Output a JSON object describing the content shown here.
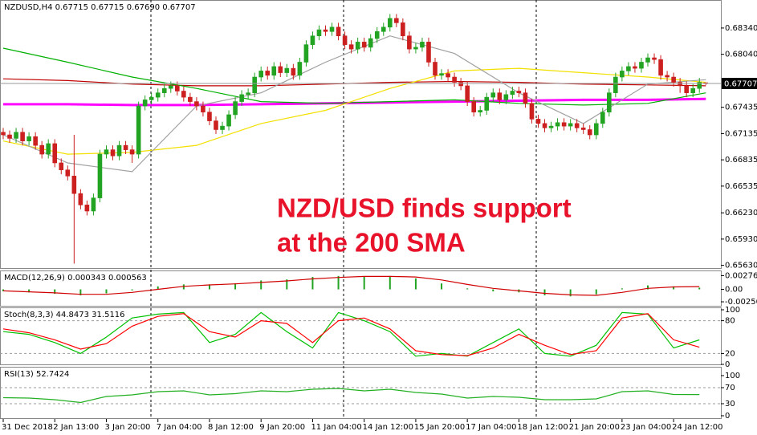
{
  "chart_data": [
    {
      "type": "candlestick",
      "title": "NZDUSD,H4 0.67715 0.67715 0.67690 0.67707",
      "ylim": [
        0.6559,
        0.6866
      ],
      "yticks": [
        {
          "value": 0.6834,
          "label": "0.68340"
        },
        {
          "value": 0.6804,
          "label": "0.68040"
        },
        {
          "value": 0.67435,
          "label": "0.67435"
        },
        {
          "value": 0.67135,
          "label": "0.67135"
        },
        {
          "value": 0.66835,
          "label": "0.66835"
        },
        {
          "value": 0.66535,
          "label": "0.66535"
        },
        {
          "value": 0.6623,
          "label": "0.66230"
        },
        {
          "value": 0.6593,
          "label": "0.65930"
        },
        {
          "value": 0.6563,
          "label": "0.65630"
        }
      ],
      "up_color": "#22a322",
      "down_color": "#cc1f1f",
      "open": [
        0.6715,
        0.6712,
        0.6708,
        0.6715,
        0.6705,
        0.671,
        0.67,
        0.669,
        0.6702,
        0.668,
        0.6672,
        0.6665,
        0.6645,
        0.6632,
        0.6625,
        0.664,
        0.669,
        0.6695,
        0.6688,
        0.67,
        0.6695,
        0.669,
        0.6745,
        0.6752,
        0.6755,
        0.676,
        0.6765,
        0.6768,
        0.6762,
        0.6755,
        0.675,
        0.6745,
        0.6738,
        0.6728,
        0.6718,
        0.6722,
        0.6735,
        0.675,
        0.6758,
        0.676,
        0.6778,
        0.6785,
        0.678,
        0.679,
        0.6783,
        0.6788,
        0.678,
        0.6795,
        0.6815,
        0.6825,
        0.6832,
        0.683,
        0.6835,
        0.6825,
        0.6815,
        0.681,
        0.6818,
        0.6812,
        0.6822,
        0.683,
        0.6835,
        0.6845,
        0.684,
        0.6825,
        0.681,
        0.6812,
        0.6818,
        0.6795,
        0.678,
        0.6782,
        0.6778,
        0.6772,
        0.6768,
        0.675,
        0.6738,
        0.674,
        0.6755,
        0.676,
        0.6752,
        0.6758,
        0.6762,
        0.676,
        0.6748,
        0.673,
        0.6725,
        0.672,
        0.6722,
        0.6726,
        0.6722,
        0.6725,
        0.672,
        0.6718,
        0.6712,
        0.6725,
        0.6738,
        0.676,
        0.6778,
        0.6785,
        0.679,
        0.6788,
        0.6795,
        0.68,
        0.6798,
        0.678,
        0.6778,
        0.6772,
        0.6768,
        0.676,
        0.6765,
        0.67715
      ],
      "high": [
        0.672,
        0.6717,
        0.672,
        0.672,
        0.6715,
        0.6715,
        0.6705,
        0.6707,
        0.6707,
        0.6685,
        0.6677,
        0.6712,
        0.665,
        0.6637,
        0.6645,
        0.6695,
        0.67,
        0.67,
        0.6705,
        0.6705,
        0.67,
        0.675,
        0.6757,
        0.676,
        0.6765,
        0.677,
        0.6773,
        0.6773,
        0.6767,
        0.676,
        0.6755,
        0.675,
        0.6743,
        0.6733,
        0.6727,
        0.674,
        0.6755,
        0.6763,
        0.6765,
        0.6783,
        0.679,
        0.679,
        0.6795,
        0.6795,
        0.6793,
        0.6793,
        0.68,
        0.682,
        0.683,
        0.6837,
        0.6837,
        0.684,
        0.684,
        0.683,
        0.682,
        0.6823,
        0.6823,
        0.6827,
        0.6835,
        0.684,
        0.685,
        0.685,
        0.6845,
        0.683,
        0.6817,
        0.6823,
        0.6823,
        0.68,
        0.6787,
        0.6787,
        0.6783,
        0.6777,
        0.6773,
        0.6755,
        0.6745,
        0.676,
        0.6765,
        0.6765,
        0.6763,
        0.6767,
        0.6767,
        0.6765,
        0.6753,
        0.6735,
        0.673,
        0.6727,
        0.6731,
        0.6731,
        0.673,
        0.673,
        0.6725,
        0.6723,
        0.673,
        0.6743,
        0.6765,
        0.6783,
        0.679,
        0.6795,
        0.6795,
        0.68,
        0.6805,
        0.6805,
        0.6803,
        0.6785,
        0.6783,
        0.6777,
        0.6773,
        0.677,
        0.6777,
        0.67715
      ],
      "low": [
        0.6707,
        0.6703,
        0.6703,
        0.67,
        0.67,
        0.6695,
        0.6685,
        0.6685,
        0.6675,
        0.6667,
        0.666,
        0.6565,
        0.6627,
        0.662,
        0.662,
        0.6635,
        0.6685,
        0.6683,
        0.6683,
        0.669,
        0.668,
        0.6685,
        0.674,
        0.6747,
        0.675,
        0.6755,
        0.676,
        0.6757,
        0.675,
        0.6745,
        0.674,
        0.6733,
        0.6723,
        0.6713,
        0.6713,
        0.6717,
        0.673,
        0.6745,
        0.6753,
        0.6755,
        0.6773,
        0.6775,
        0.6775,
        0.6778,
        0.6778,
        0.6775,
        0.6775,
        0.679,
        0.681,
        0.682,
        0.6825,
        0.6825,
        0.682,
        0.681,
        0.6805,
        0.6805,
        0.6807,
        0.6807,
        0.6817,
        0.6825,
        0.683,
        0.6835,
        0.682,
        0.6805,
        0.6805,
        0.6807,
        0.679,
        0.6775,
        0.6775,
        0.6773,
        0.6767,
        0.6763,
        0.6745,
        0.6733,
        0.6733,
        0.6735,
        0.675,
        0.6747,
        0.6747,
        0.6753,
        0.6755,
        0.6743,
        0.6725,
        0.672,
        0.6715,
        0.6715,
        0.6717,
        0.6717,
        0.6717,
        0.6715,
        0.6713,
        0.6707,
        0.6707,
        0.672,
        0.6733,
        0.6755,
        0.6773,
        0.678,
        0.6783,
        0.6783,
        0.679,
        0.6793,
        0.6775,
        0.6773,
        0.6767,
        0.676,
        0.6755,
        0.6755,
        0.676,
        0.6769
      ],
      "close": [
        0.6712,
        0.6708,
        0.6715,
        0.6705,
        0.671,
        0.67,
        0.669,
        0.6702,
        0.668,
        0.6672,
        0.6665,
        0.6645,
        0.6632,
        0.6625,
        0.664,
        0.669,
        0.6695,
        0.6688,
        0.67,
        0.6695,
        0.669,
        0.6745,
        0.6752,
        0.6755,
        0.676,
        0.6765,
        0.6768,
        0.6762,
        0.6755,
        0.675,
        0.6745,
        0.6738,
        0.6728,
        0.6718,
        0.6722,
        0.6735,
        0.675,
        0.6758,
        0.676,
        0.6778,
        0.6785,
        0.678,
        0.679,
        0.6783,
        0.6788,
        0.678,
        0.6795,
        0.6815,
        0.6825,
        0.6832,
        0.683,
        0.6835,
        0.6825,
        0.6815,
        0.681,
        0.6818,
        0.6812,
        0.6822,
        0.683,
        0.6835,
        0.6845,
        0.684,
        0.6825,
        0.681,
        0.6812,
        0.6818,
        0.6795,
        0.678,
        0.6782,
        0.6778,
        0.6772,
        0.6768,
        0.675,
        0.6738,
        0.674,
        0.6755,
        0.676,
        0.6752,
        0.6758,
        0.6762,
        0.676,
        0.6748,
        0.673,
        0.6725,
        0.672,
        0.6722,
        0.6726,
        0.6722,
        0.6725,
        0.672,
        0.6718,
        0.6712,
        0.6725,
        0.6738,
        0.676,
        0.6778,
        0.6785,
        0.679,
        0.6788,
        0.6795,
        0.68,
        0.6798,
        0.678,
        0.6778,
        0.6772,
        0.6768,
        0.676,
        0.6765,
        0.6772,
        0.67707
      ],
      "lines": [
        {
          "color": "#ff00ff",
          "x": [
            0,
            10,
            20,
            30,
            40,
            50,
            60,
            70,
            80,
            90,
            100,
            109
          ],
          "values": [
            0.6747,
            0.6747,
            0.6746,
            0.6746,
            0.6747,
            0.6748,
            0.6749,
            0.675,
            0.6751,
            0.6752,
            0.6752,
            0.6753
          ]
        },
        {
          "color": "#c00000",
          "x": [
            0,
            10,
            20,
            30,
            40,
            50,
            60,
            70,
            80,
            90,
            100,
            109
          ],
          "values": [
            0.6776,
            0.6774,
            0.677,
            0.6768,
            0.6768,
            0.677,
            0.6772,
            0.6773,
            0.6772,
            0.677,
            0.6769,
            0.6768
          ]
        },
        {
          "color": "#00b000",
          "x": [
            0,
            10,
            20,
            30,
            40,
            50,
            60,
            70,
            80,
            90,
            100,
            109
          ],
          "values": [
            0.6811,
            0.6795,
            0.6778,
            0.6765,
            0.675,
            0.6748,
            0.675,
            0.6752,
            0.6748,
            0.6746,
            0.6748,
            0.676
          ]
        },
        {
          "color": "#f2e000",
          "x": [
            0,
            10,
            20,
            30,
            40,
            50,
            60,
            70,
            80,
            90,
            100,
            109
          ],
          "values": [
            0.6705,
            0.669,
            0.6692,
            0.67,
            0.6725,
            0.674,
            0.6765,
            0.6785,
            0.6788,
            0.6783,
            0.6778,
            0.6772
          ]
        },
        {
          "color": "#a0a0a0",
          "x": [
            0,
            10,
            20,
            30,
            40,
            50,
            60,
            70,
            80,
            90,
            100,
            109
          ],
          "values": [
            0.6712,
            0.668,
            0.667,
            0.6745,
            0.676,
            0.6795,
            0.6825,
            0.6805,
            0.676,
            0.6725,
            0.677,
            0.6775
          ]
        }
      ],
      "last_price": 0.67707,
      "annotations": [
        "NZD/USD finds support",
        "at the 200 SMA"
      ]
    },
    {
      "type": "bar",
      "title": "MACD(12,26,9) 0.000343 0.000563",
      "ylim": [
        -0.0033,
        0.0038
      ],
      "yticks": [
        0.002761,
        {
          "value": 0,
          "label": "0.00"
        },
        -0.002501
      ],
      "grid": false,
      "x": [
        0,
        4,
        8,
        12,
        16,
        20,
        24,
        28,
        32,
        36,
        40,
        44,
        48,
        52,
        56,
        60,
        64,
        68,
        72,
        76,
        80,
        84,
        88,
        92,
        96,
        100,
        104,
        108
      ],
      "color": "#22a322",
      "values": [
        -0.0004,
        -0.0006,
        -0.0009,
        -0.0012,
        -0.0008,
        -0.0002,
        0.0006,
        0.001,
        0.001,
        0.0012,
        0.0018,
        0.002,
        0.0025,
        0.0027,
        0.0026,
        0.0027,
        0.0022,
        0.0012,
        0.0002,
        -0.0004,
        -0.0006,
        -0.0012,
        -0.0014,
        -0.001,
        0.0002,
        0.0008,
        0.0006,
        0.000343
      ],
      "lines": [
        {
          "color": "#d00000",
          "values": [
            -0.0003,
            -0.0005,
            -0.0007,
            -0.001,
            -0.001,
            -0.0006,
            0,
            0.0006,
            0.0009,
            0.0011,
            0.0014,
            0.0017,
            0.0021,
            0.0024,
            0.0026,
            0.0026,
            0.0025,
            0.0019,
            0.001,
            0.0002,
            -0.0003,
            -0.0008,
            -0.0011,
            -0.0012,
            -0.0006,
            0.0002,
            0.0005,
            0.000563
          ]
        }
      ]
    },
    {
      "type": "line",
      "title": "Stoch(8,3,3) 44.8473 31.5116",
      "ylim": [
        0,
        100
      ],
      "yticks": [
        100,
        80,
        20,
        0
      ],
      "grid": true,
      "x": [
        0,
        4,
        8,
        12,
        16,
        20,
        24,
        28,
        32,
        36,
        40,
        44,
        48,
        52,
        56,
        60,
        64,
        68,
        72,
        76,
        80,
        84,
        88,
        92,
        96,
        100,
        104,
        108
      ],
      "lines": [
        {
          "color": "#00c000",
          "values": [
            60,
            55,
            40,
            20,
            50,
            85,
            92,
            95,
            40,
            55,
            95,
            60,
            30,
            95,
            80,
            60,
            15,
            20,
            15,
            40,
            65,
            20,
            15,
            35,
            95,
            92,
            30,
            44.8473
          ]
        },
        {
          "color": "#ff0000",
          "values": [
            65,
            58,
            45,
            28,
            38,
            70,
            88,
            93,
            60,
            50,
            80,
            75,
            40,
            80,
            85,
            65,
            25,
            18,
            16,
            30,
            55,
            35,
            18,
            25,
            85,
            93,
            45,
            31.5116
          ]
        }
      ]
    },
    {
      "type": "line",
      "title": "RSI(13) 52.7424",
      "ylim": [
        0,
        100
      ],
      "yticks": [
        100,
        70,
        30,
        0
      ],
      "grid": true,
      "x": [
        0,
        4,
        8,
        12,
        16,
        20,
        24,
        28,
        32,
        36,
        40,
        44,
        48,
        52,
        56,
        60,
        64,
        68,
        72,
        76,
        80,
        84,
        88,
        92,
        96,
        100,
        104,
        108
      ],
      "lines": [
        {
          "color": "#22b022",
          "values": [
            45,
            44,
            40,
            33,
            48,
            52,
            60,
            62,
            52,
            55,
            62,
            60,
            66,
            68,
            62,
            66,
            58,
            54,
            44,
            48,
            46,
            40,
            40,
            42,
            60,
            62,
            53,
            52.7424
          ]
        }
      ],
      "xticks": [
        "31 Dec 2018",
        "2 Jan 13:00",
        "3 Jan 20:00",
        "7 Jan 04:00",
        "8 Jan 12:00",
        "9 Jan 20:00",
        "11 Jan 04:00",
        "14 Jan 12:00",
        "15 Jan 20:00",
        "17 Jan 04:00",
        "18 Jan 12:00",
        "21 Jan 20:00",
        "23 Jan 04:00",
        "24 Jan 12:00"
      ]
    }
  ]
}
